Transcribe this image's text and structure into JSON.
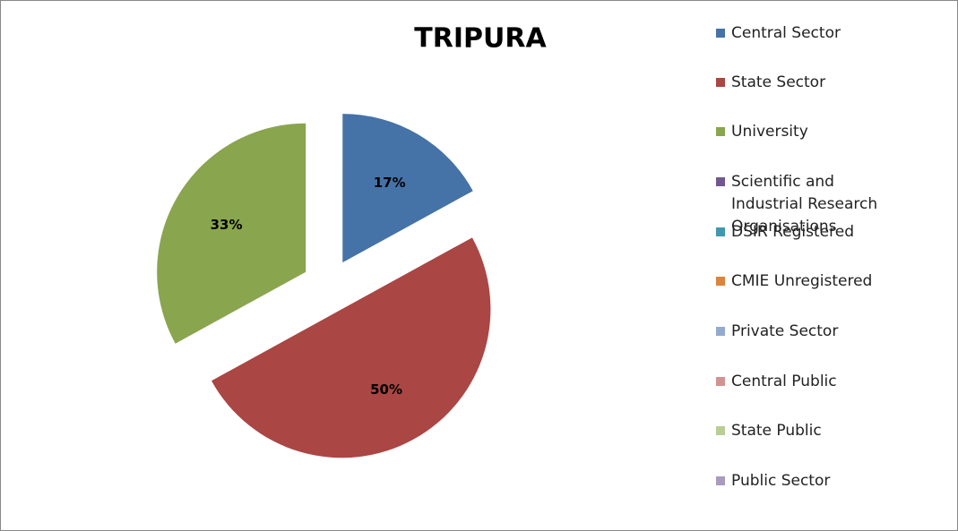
{
  "chart_data": {
    "type": "pie",
    "title": "TRIPURA",
    "categories": [
      "Central Sector",
      "State Sector",
      "University",
      "Scientific and Industrial Research Organisations",
      "DSIR Registered",
      "CMIE Unregistered",
      "Private Sector",
      "Central Public",
      "State Public",
      "Public Sector"
    ],
    "values": [
      17,
      50,
      33,
      0,
      0,
      0,
      0,
      0,
      0,
      0
    ],
    "value_labels": [
      "17%",
      "50%",
      "33%",
      null,
      null,
      null,
      null,
      null,
      null,
      null
    ],
    "colors": [
      "#4572a7",
      "#aa4643",
      "#89a54e",
      "#71588f",
      "#4198af",
      "#db843d",
      "#93a9cf",
      "#d19392",
      "#b9cd96",
      "#a99bbd"
    ],
    "exploded": true,
    "legend": "right"
  }
}
